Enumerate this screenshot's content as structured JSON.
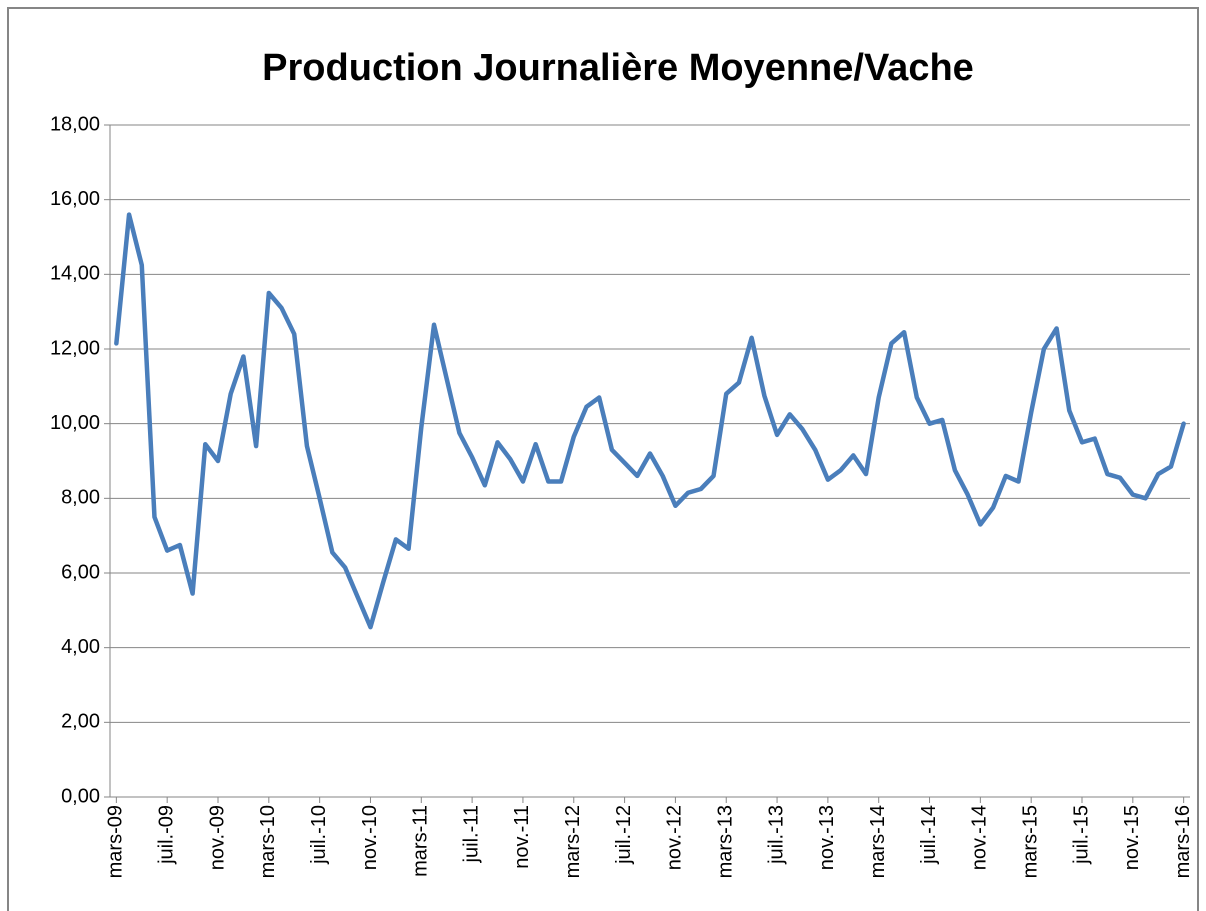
{
  "chart_data": {
    "type": "line",
    "title": "Production Journalière Moyenne/Vache",
    "categories": [
      "mars-09",
      null,
      null,
      null,
      "juil.-09",
      null,
      null,
      null,
      "nov.-09",
      null,
      null,
      null,
      "mars-10",
      null,
      null,
      null,
      "juil.-10",
      null,
      null,
      null,
      "nov.-10",
      null,
      null,
      null,
      "mars-11",
      null,
      null,
      null,
      "juil.-11",
      null,
      null,
      null,
      "nov.-11",
      null,
      null,
      null,
      "mars-12",
      null,
      null,
      null,
      "juil.-12",
      null,
      null,
      null,
      "nov.-12",
      null,
      null,
      null,
      "mars-13",
      null,
      null,
      null,
      "juil.-13",
      null,
      null,
      null,
      "nov.-13",
      null,
      null,
      null,
      "mars-14",
      null,
      null,
      null,
      "juil.-14",
      null,
      null,
      null,
      "nov.-14",
      null,
      null,
      null,
      "mars-15",
      null,
      null,
      null,
      "juil.-15",
      null,
      null,
      null,
      "nov.-15",
      null,
      null,
      null,
      "mars-16"
    ],
    "series": [
      {
        "color": "#4a7ebb",
        "values": [
          12.15,
          15.6,
          14.25,
          7.5,
          6.6,
          6.75,
          5.45,
          9.45,
          9.0,
          10.8,
          11.8,
          9.4,
          13.5,
          13.1,
          12.4,
          9.4,
          8.0,
          6.55,
          6.15,
          5.35,
          4.55,
          5.75,
          6.9,
          6.65,
          9.9,
          12.65,
          11.2,
          9.75,
          9.1,
          8.35,
          9.5,
          9.05,
          8.45,
          9.45,
          8.45,
          8.45,
          9.65,
          10.45,
          10.7,
          9.3,
          8.95,
          8.6,
          9.2,
          8.6,
          7.8,
          8.15,
          8.25,
          8.6,
          10.8,
          11.1,
          12.3,
          10.75,
          9.7,
          10.25,
          9.85,
          9.3,
          8.5,
          8.75,
          9.15,
          8.65,
          10.7,
          12.15,
          12.45,
          10.7,
          10.0,
          10.1,
          8.75,
          8.1,
          7.3,
          7.75,
          8.6,
          8.45,
          10.3,
          12.0,
          12.55,
          10.35,
          9.5,
          9.6,
          8.65,
          8.55,
          8.1,
          8.0,
          8.65,
          8.85,
          10.0
        ]
      }
    ],
    "ylim": [
      0,
      18
    ],
    "yticks": [
      {
        "value": 0,
        "label": "0,00"
      },
      {
        "value": 2,
        "label": "2,00"
      },
      {
        "value": 4,
        "label": "4,00"
      },
      {
        "value": 6,
        "label": "6,00"
      },
      {
        "value": 8,
        "label": "8,00"
      },
      {
        "value": 10,
        "label": "10,00"
      },
      {
        "value": 12,
        "label": "12,00"
      },
      {
        "value": 14,
        "label": "14,00"
      },
      {
        "value": 16,
        "label": "16,00"
      },
      {
        "value": 18,
        "label": "18,00"
      }
    ],
    "grid": true
  }
}
